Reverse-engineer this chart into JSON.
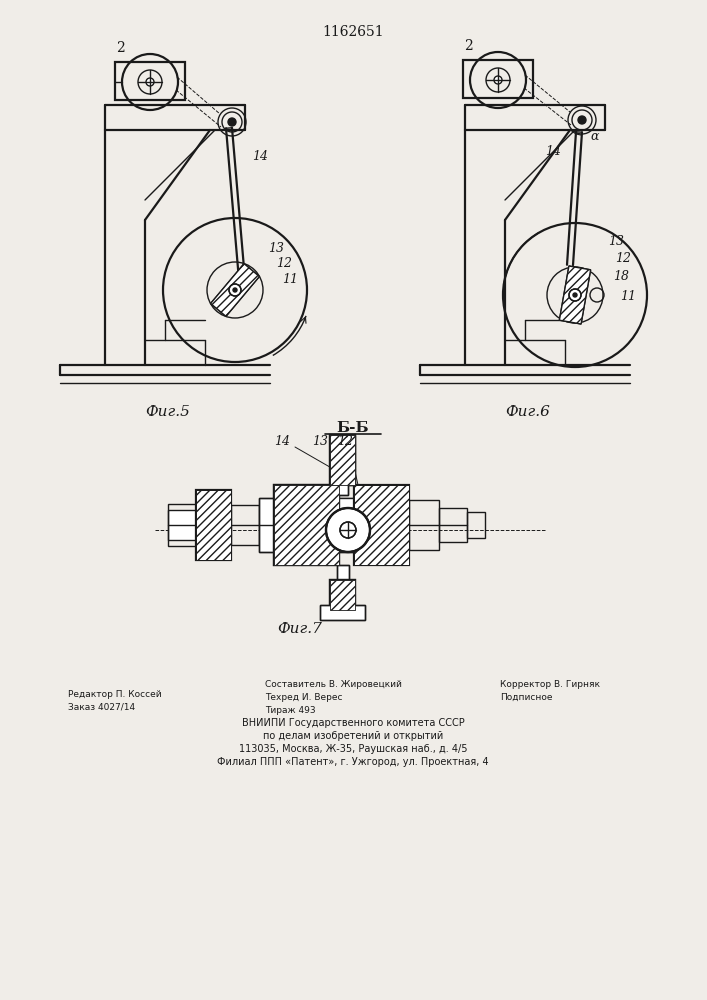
{
  "patent_number": "1162651",
  "bg_color": "#f0ede8",
  "line_color": "#1a1a1a",
  "fig5_caption": "Фиг.5",
  "fig6_caption": "Фиг.6",
  "fig7_caption": "Фиг.7",
  "section_label": "Б-Б"
}
